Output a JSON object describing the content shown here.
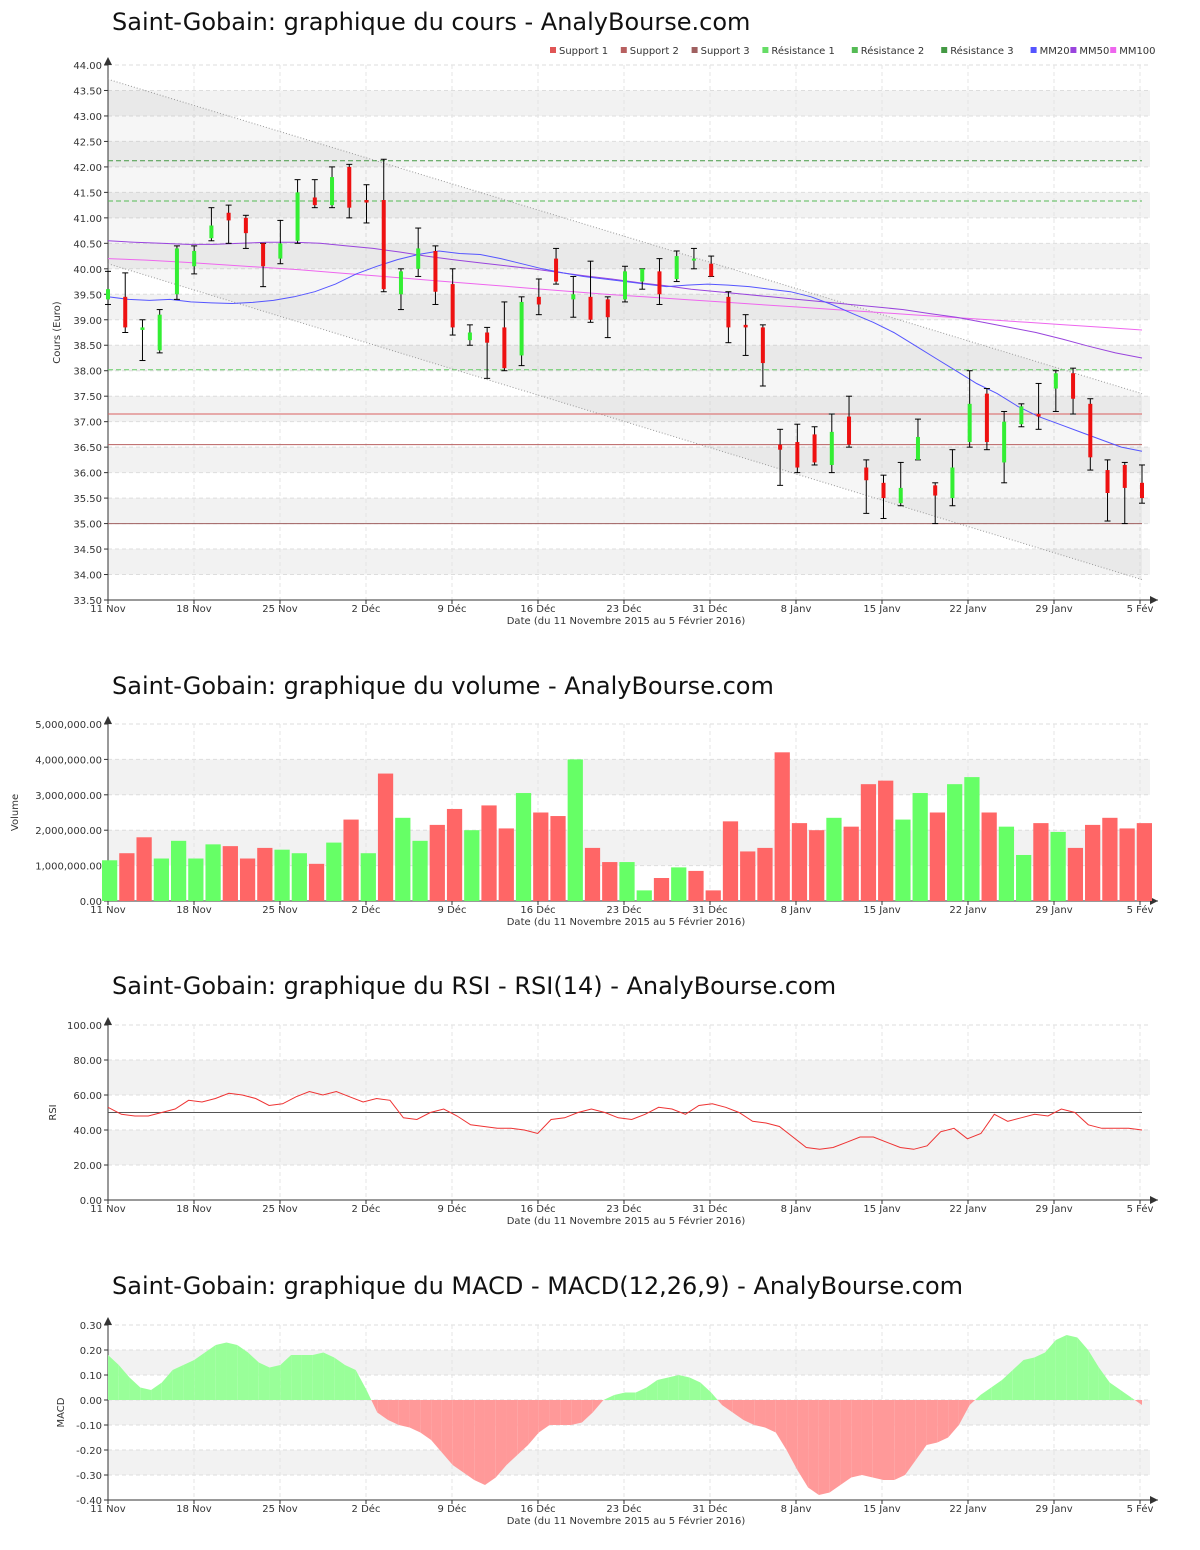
{
  "chart_data": [
    {
      "type": "candlestick",
      "title": "Saint-Gobain: graphique du cours - AnalyBourse.com",
      "xlabel": "Date (du 11 Novembre 2015 au 5 Février 2016)",
      "ylabel": "Cours (Euro)",
      "ylim": [
        33.5,
        44.0
      ],
      "yticks": [
        "33.50",
        "34.00",
        "34.50",
        "35.00",
        "35.50",
        "36.00",
        "36.50",
        "37.00",
        "37.50",
        "38.00",
        "38.50",
        "39.00",
        "39.50",
        "40.00",
        "40.50",
        "41.00",
        "41.50",
        "42.00",
        "42.50",
        "43.00",
        "43.50",
        "44.00"
      ],
      "xticks": [
        "11 Nov",
        "18 Nov",
        "25 Nov",
        "2 Déc",
        "9 Déc",
        "16 Déc",
        "23 Déc",
        "31 Déc",
        "8 Janv",
        "15 Janv",
        "22 Janv",
        "29 Janv",
        "5 Fév"
      ],
      "legend": [
        {
          "name": "Support 1",
          "color": "#e05555"
        },
        {
          "name": "Support 2",
          "color": "#b86060"
        },
        {
          "name": "Support 3",
          "color": "#a06060"
        },
        {
          "name": "Résistance 1",
          "color": "#66dd66"
        },
        {
          "name": "Résistance 2",
          "color": "#55bb55"
        },
        {
          "name": "Résistance 3",
          "color": "#449944"
        },
        {
          "name": "MM20",
          "color": "#5555ff"
        },
        {
          "name": "MM50",
          "color": "#9944dd"
        },
        {
          "name": "MM100",
          "color": "#ee66ee"
        }
      ],
      "levels": {
        "support": [
          37.15,
          36.55,
          35.0
        ],
        "resistance": [
          38.02,
          41.33,
          42.12
        ]
      },
      "candles": [
        {
          "o": 39.4,
          "h": 39.95,
          "l": 39.3,
          "c": 39.6
        },
        {
          "o": 39.45,
          "h": 39.92,
          "l": 38.75,
          "c": 38.85
        },
        {
          "o": 38.8,
          "h": 39.0,
          "l": 38.2,
          "c": 38.85
        },
        {
          "o": 38.4,
          "h": 39.2,
          "l": 38.35,
          "c": 39.1
        },
        {
          "o": 39.5,
          "h": 40.45,
          "l": 39.4,
          "c": 40.4
        },
        {
          "o": 40.05,
          "h": 40.45,
          "l": 39.9,
          "c": 40.35
        },
        {
          "o": 40.6,
          "h": 41.2,
          "l": 40.55,
          "c": 40.85
        },
        {
          "o": 41.1,
          "h": 41.25,
          "l": 40.5,
          "c": 40.95
        },
        {
          "o": 41.0,
          "h": 41.05,
          "l": 40.4,
          "c": 40.7
        },
        {
          "o": 40.5,
          "h": 40.5,
          "l": 39.65,
          "c": 40.05
        },
        {
          "o": 40.2,
          "h": 40.95,
          "l": 40.1,
          "c": 40.5
        },
        {
          "o": 40.55,
          "h": 41.75,
          "l": 40.5,
          "c": 41.5
        },
        {
          "o": 41.4,
          "h": 41.75,
          "l": 41.2,
          "c": 41.25
        },
        {
          "o": 41.25,
          "h": 42.0,
          "l": 41.2,
          "c": 41.8
        },
        {
          "o": 42.0,
          "h": 42.05,
          "l": 41.0,
          "c": 41.2
        },
        {
          "o": 41.35,
          "h": 41.65,
          "l": 40.9,
          "c": 41.3
        },
        {
          "o": 41.35,
          "h": 42.15,
          "l": 39.55,
          "c": 39.6
        },
        {
          "o": 39.5,
          "h": 40.0,
          "l": 39.2,
          "c": 39.95
        },
        {
          "o": 40.0,
          "h": 40.8,
          "l": 39.85,
          "c": 40.4
        },
        {
          "o": 40.35,
          "h": 40.45,
          "l": 39.3,
          "c": 39.55
        },
        {
          "o": 39.7,
          "h": 40.0,
          "l": 38.7,
          "c": 38.85
        },
        {
          "o": 38.6,
          "h": 38.9,
          "l": 38.5,
          "c": 38.75
        },
        {
          "o": 38.75,
          "h": 38.85,
          "l": 37.85,
          "c": 38.55
        },
        {
          "o": 38.85,
          "h": 39.35,
          "l": 38.0,
          "c": 38.05
        },
        {
          "o": 38.3,
          "h": 39.45,
          "l": 38.1,
          "c": 39.35
        },
        {
          "o": 39.45,
          "h": 39.8,
          "l": 39.1,
          "c": 39.3
        },
        {
          "o": 40.2,
          "h": 40.4,
          "l": 39.7,
          "c": 39.75
        },
        {
          "o": 39.4,
          "h": 39.85,
          "l": 39.05,
          "c": 39.5
        },
        {
          "o": 39.45,
          "h": 40.15,
          "l": 38.95,
          "c": 39.0
        },
        {
          "o": 39.4,
          "h": 39.45,
          "l": 38.65,
          "c": 39.05
        },
        {
          "o": 39.4,
          "h": 40.05,
          "l": 39.35,
          "c": 39.95
        },
        {
          "o": 39.75,
          "h": 40.0,
          "l": 39.6,
          "c": 40.0
        },
        {
          "o": 39.95,
          "h": 40.2,
          "l": 39.3,
          "c": 39.5
        },
        {
          "o": 39.8,
          "h": 40.35,
          "l": 39.75,
          "c": 40.25
        },
        {
          "o": 40.2,
          "h": 40.4,
          "l": 40.0,
          "c": 40.2
        },
        {
          "o": 40.1,
          "h": 40.25,
          "l": 39.85,
          "c": 39.85
        },
        {
          "o": 39.45,
          "h": 39.55,
          "l": 38.55,
          "c": 38.85
        },
        {
          "o": 38.9,
          "h": 39.1,
          "l": 38.3,
          "c": 38.85
        },
        {
          "o": 38.85,
          "h": 38.9,
          "l": 37.7,
          "c": 38.15
        },
        {
          "o": 36.55,
          "h": 36.85,
          "l": 35.75,
          "c": 36.45
        },
        {
          "o": 36.6,
          "h": 36.95,
          "l": 36.0,
          "c": 36.1
        },
        {
          "o": 36.75,
          "h": 36.9,
          "l": 36.15,
          "c": 36.2
        },
        {
          "o": 36.15,
          "h": 37.15,
          "l": 36.0,
          "c": 36.8
        },
        {
          "o": 37.1,
          "h": 37.5,
          "l": 36.5,
          "c": 36.55
        },
        {
          "o": 36.1,
          "h": 36.25,
          "l": 35.2,
          "c": 35.85
        },
        {
          "o": 35.8,
          "h": 35.95,
          "l": 35.1,
          "c": 35.5
        },
        {
          "o": 35.4,
          "h": 36.2,
          "l": 35.35,
          "c": 35.7
        },
        {
          "o": 36.25,
          "h": 37.05,
          "l": 36.25,
          "c": 36.7
        },
        {
          "o": 35.75,
          "h": 35.8,
          "l": 35.0,
          "c": 35.55
        },
        {
          "o": 35.5,
          "h": 36.45,
          "l": 35.35,
          "c": 36.1
        },
        {
          "o": 36.6,
          "h": 38.0,
          "l": 36.5,
          "c": 37.35
        },
        {
          "o": 37.55,
          "h": 37.65,
          "l": 36.45,
          "c": 36.6
        },
        {
          "o": 36.2,
          "h": 37.2,
          "l": 35.8,
          "c": 37.0
        },
        {
          "o": 36.95,
          "h": 37.35,
          "l": 36.9,
          "c": 37.3
        },
        {
          "o": 37.15,
          "h": 37.75,
          "l": 36.85,
          "c": 37.1
        },
        {
          "o": 37.65,
          "h": 38.0,
          "l": 37.2,
          "c": 37.95
        },
        {
          "o": 37.95,
          "h": 38.05,
          "l": 37.15,
          "c": 37.45
        },
        {
          "o": 37.35,
          "h": 37.45,
          "l": 36.05,
          "c": 36.3
        },
        {
          "o": 36.05,
          "h": 36.25,
          "l": 35.05,
          "c": 35.6
        },
        {
          "o": 36.15,
          "h": 36.2,
          "l": 35.0,
          "c": 35.7
        },
        {
          "o": 35.8,
          "h": 36.15,
          "l": 35.4,
          "c": 35.5
        }
      ],
      "mm20": [
        39.45,
        39.4,
        39.38,
        39.4,
        39.35,
        39.33,
        39.32,
        39.34,
        39.38,
        39.45,
        39.55,
        39.7,
        39.9,
        40.05,
        40.18,
        40.28,
        40.35,
        40.3,
        40.28,
        40.2,
        40.1,
        40.0,
        39.92,
        39.85,
        39.8,
        39.75,
        39.7,
        39.65,
        39.68,
        39.7,
        39.68,
        39.65,
        39.6,
        39.55,
        39.45,
        39.3,
        39.12,
        38.95,
        38.75,
        38.5,
        38.25,
        38.0,
        37.75,
        37.55,
        37.3,
        37.1,
        36.95,
        36.8,
        36.65,
        36.5,
        36.42
      ],
      "mm50": [
        40.55,
        40.52,
        40.5,
        40.48,
        40.48,
        40.5,
        40.52,
        40.52,
        40.5,
        40.45,
        40.4,
        40.33,
        40.25,
        40.18,
        40.12,
        40.06,
        40.0,
        39.93,
        39.86,
        39.8,
        39.73,
        39.67,
        39.6,
        39.55,
        39.5,
        39.45,
        39.4,
        39.35,
        39.3,
        39.25,
        39.2,
        39.12,
        39.05,
        38.95,
        38.85,
        38.75,
        38.62,
        38.48,
        38.35,
        38.25
      ],
      "mm100": [
        40.2,
        40.17,
        40.13,
        40.08,
        40.03,
        39.98,
        39.92,
        39.86,
        39.8,
        39.74,
        39.68,
        39.62,
        39.56,
        39.5,
        39.45,
        39.4,
        39.35,
        39.3,
        39.25,
        39.2,
        39.15,
        39.1,
        39.05,
        39.0,
        38.95,
        38.9,
        38.85,
        38.8
      ]
    },
    {
      "type": "bar",
      "title": "Saint-Gobain: graphique du volume - AnalyBourse.com",
      "xlabel": "Date (du 11 Novembre 2015 au 5 Février 2016)",
      "ylabel": "Volume",
      "ylim": [
        0,
        5000000
      ],
      "yticks": [
        "0.00",
        "1,000,000.00",
        "2,000,000.00",
        "3,000,000.00",
        "4,000,000.00",
        "5,000,000.00"
      ],
      "xticks": [
        "11 Nov",
        "18 Nov",
        "25 Nov",
        "2 Déc",
        "9 Déc",
        "16 Déc",
        "23 Déc",
        "31 Déc",
        "8 Janv",
        "15 Janv",
        "22 Janv",
        "29 Janv",
        "5 Fév"
      ],
      "values": [
        1150000,
        1350000,
        1800000,
        1200000,
        1700000,
        1200000,
        1600000,
        1550000,
        1200000,
        1500000,
        1450000,
        1350000,
        1050000,
        1650000,
        2300000,
        1350000,
        3600000,
        2350000,
        1700000,
        2150000,
        2600000,
        2000000,
        2700000,
        2050000,
        3050000,
        2500000,
        2400000,
        4000000,
        1500000,
        1100000,
        1100000,
        300000,
        650000,
        950000,
        850000,
        300000,
        2250000,
        1400000,
        1500000,
        4200000,
        2200000,
        2000000,
        2350000,
        2100000,
        3300000,
        3400000,
        2300000,
        3050000,
        2500000,
        3300000,
        3500000,
        2500000,
        2100000,
        1300000,
        2200000,
        1950000,
        1500000,
        2150000,
        2350000,
        2050000,
        2200000
      ],
      "colors": [
        "g",
        "r",
        "r",
        "g",
        "g",
        "g",
        "g",
        "r",
        "r",
        "r",
        "g",
        "g",
        "r",
        "g",
        "r",
        "g",
        "r",
        "g",
        "g",
        "r",
        "r",
        "g",
        "r",
        "r",
        "g",
        "r",
        "r",
        "g",
        "r",
        "r",
        "g",
        "g",
        "r",
        "g",
        "r",
        "r",
        "r",
        "r",
        "r",
        "r",
        "r",
        "r",
        "g",
        "r",
        "r",
        "r",
        "g",
        "g",
        "r",
        "g",
        "g",
        "r",
        "g",
        "g",
        "r",
        "g",
        "r",
        "r",
        "r",
        "r",
        "r"
      ]
    },
    {
      "type": "line",
      "title": "Saint-Gobain: graphique du RSI - RSI(14) - AnalyBourse.com",
      "xlabel": "Date (du 11 Novembre 2015 au 5 Février 2016)",
      "ylabel": "RSI",
      "ylim": [
        0,
        100
      ],
      "yticks": [
        "0.00",
        "20.00",
        "40.00",
        "60.00",
        "80.00",
        "100.00"
      ],
      "xticks": [
        "11 Nov",
        "18 Nov",
        "25 Nov",
        "2 Déc",
        "9 Déc",
        "16 Déc",
        "23 Déc",
        "31 Déc",
        "8 Janv",
        "15 Janv",
        "22 Janv",
        "29 Janv",
        "5 Fév"
      ],
      "reference": 50,
      "values": [
        53,
        49,
        48,
        48,
        50,
        52,
        57,
        56,
        58,
        61,
        60,
        58,
        54,
        55,
        59,
        62,
        60,
        62,
        59,
        56,
        58,
        57,
        47,
        46,
        50,
        52,
        48,
        43,
        42,
        41,
        41,
        40,
        38,
        46,
        47,
        50,
        52,
        50,
        47,
        46,
        49,
        53,
        52,
        49,
        54,
        55,
        53,
        50,
        45,
        44,
        42,
        36,
        30,
        29,
        30,
        33,
        36,
        36,
        33,
        30,
        29,
        31,
        39,
        41,
        35,
        38,
        49,
        45,
        47,
        49,
        48,
        52,
        50,
        43,
        41,
        41,
        41,
        40
      ]
    },
    {
      "type": "area",
      "title": "Saint-Gobain: graphique du MACD - MACD(12,26,9) - AnalyBourse.com",
      "xlabel": "Date (du 11 Novembre 2015 au 5 Février 2016)",
      "ylabel": "MACD",
      "ylim": [
        -0.4,
        0.3
      ],
      "yticks": [
        "-0.40",
        "-0.30",
        "-0.20",
        "-0.10",
        "0.00",
        "0.10",
        "0.20",
        "0.30"
      ],
      "xticks": [
        "11 Nov",
        "18 Nov",
        "25 Nov",
        "2 Déc",
        "9 Déc",
        "16 Déc",
        "23 Déc",
        "31 Déc",
        "8 Janv",
        "15 Janv",
        "22 Janv",
        "29 Janv",
        "5 Fév"
      ],
      "values": [
        0.18,
        0.14,
        0.09,
        0.05,
        0.04,
        0.07,
        0.12,
        0.14,
        0.16,
        0.19,
        0.22,
        0.23,
        0.22,
        0.19,
        0.15,
        0.13,
        0.14,
        0.18,
        0.18,
        0.18,
        0.19,
        0.17,
        0.14,
        0.12,
        0.04,
        -0.05,
        -0.08,
        -0.1,
        -0.11,
        -0.13,
        -0.16,
        -0.21,
        -0.26,
        -0.29,
        -0.32,
        -0.34,
        -0.31,
        -0.26,
        -0.22,
        -0.18,
        -0.13,
        -0.1,
        -0.1,
        -0.1,
        -0.09,
        -0.05,
        0.0,
        0.02,
        0.03,
        0.03,
        0.05,
        0.08,
        0.09,
        0.1,
        0.09,
        0.07,
        0.03,
        -0.02,
        -0.05,
        -0.08,
        -0.1,
        -0.11,
        -0.13,
        -0.2,
        -0.28,
        -0.35,
        -0.38,
        -0.37,
        -0.34,
        -0.31,
        -0.3,
        -0.31,
        -0.32,
        -0.32,
        -0.3,
        -0.24,
        -0.18,
        -0.17,
        -0.15,
        -0.1,
        -0.02,
        0.02,
        0.05,
        0.08,
        0.12,
        0.16,
        0.17,
        0.19,
        0.24,
        0.26,
        0.25,
        0.2,
        0.13,
        0.07,
        0.04,
        0.01,
        -0.02
      ]
    }
  ]
}
